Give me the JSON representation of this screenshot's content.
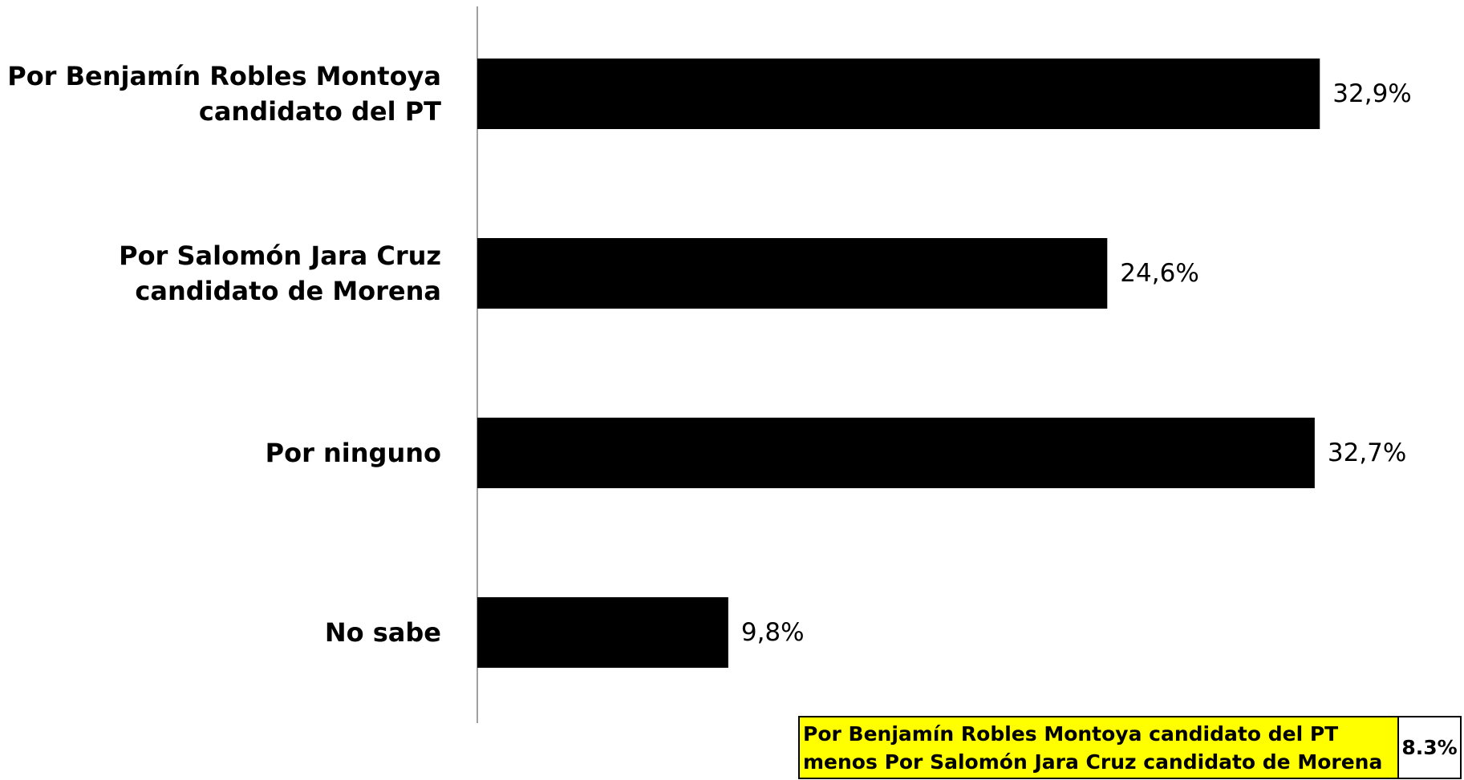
{
  "chart_data": {
    "type": "bar",
    "orientation": "horizontal",
    "categories": [
      [
        "Por Benjamín Robles Montoya",
        "candidato del PT"
      ],
      [
        "Por Salomón Jara Cruz",
        "candidato de Morena"
      ],
      [
        "Por ninguno"
      ],
      [
        "No sabe"
      ]
    ],
    "values": [
      32.9,
      24.6,
      32.7,
      9.8
    ],
    "value_labels": [
      "32,9%",
      "24,6%",
      "32,7%",
      "9,8%"
    ],
    "xlim": [
      0,
      39
    ],
    "bar_color": "#000000",
    "grid": false,
    "legend": "none"
  },
  "difference_box": {
    "label_lines": [
      "Por Benjamín Robles Montoya candidato del PT",
      "menos Por Salomón Jara Cruz candidato de Morena"
    ],
    "value": "8.3%",
    "background_color": "#ffff00"
  }
}
